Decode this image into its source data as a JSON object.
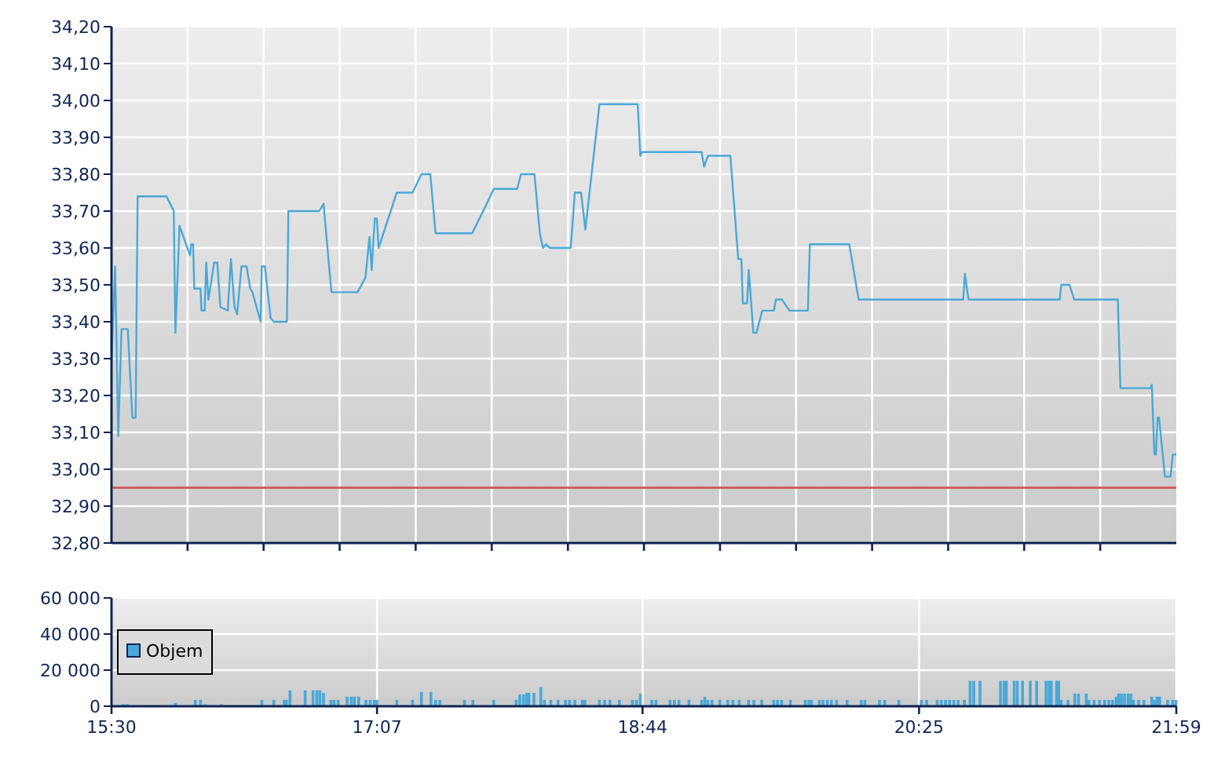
{
  "chart_data": [
    {
      "type": "line",
      "color": "#4aa8d8",
      "grid": true,
      "tick_labels": "y",
      "xlim": [
        15.5,
        21.9833
      ],
      "ylim": [
        32.8,
        34.2
      ],
      "xticks": [
        {
          "value": 15.963,
          "label": null
        },
        {
          "value": 16.426,
          "label": null
        },
        {
          "value": 16.889,
          "label": null
        },
        {
          "value": 17.352,
          "label": null
        },
        {
          "value": 17.815,
          "label": null
        },
        {
          "value": 18.279,
          "label": null
        },
        {
          "value": 18.742,
          "label": null
        },
        {
          "value": 19.205,
          "label": null
        },
        {
          "value": 19.668,
          "label": null
        },
        {
          "value": 20.131,
          "label": null
        },
        {
          "value": 20.594,
          "label": null
        },
        {
          "value": 21.057,
          "label": null
        },
        {
          "value": 21.52,
          "label": null
        }
      ],
      "yticks": [
        {
          "value": 32.8,
          "label": "32,80"
        },
        {
          "value": 32.9,
          "label": "32,90"
        },
        {
          "value": 33.0,
          "label": "33,00"
        },
        {
          "value": 33.1,
          "label": "33,10"
        },
        {
          "value": 33.2,
          "label": "33,20"
        },
        {
          "value": 33.3,
          "label": "33,30"
        },
        {
          "value": 33.4,
          "label": "33,40"
        },
        {
          "value": 33.5,
          "label": "33,50"
        },
        {
          "value": 33.6,
          "label": "33,60"
        },
        {
          "value": 33.7,
          "label": "33,70"
        },
        {
          "value": 33.8,
          "label": "33,80"
        },
        {
          "value": 33.9,
          "label": "33,90"
        },
        {
          "value": 34.0,
          "label": "34,00"
        },
        {
          "value": 34.1,
          "label": "34,10"
        },
        {
          "value": 34.2,
          "label": "34,20"
        }
      ],
      "ref_lines": [
        {
          "axis": "y",
          "value": 32.95,
          "label": null,
          "color": "#d06060"
        }
      ],
      "x": [
        15.5,
        15.522,
        15.541,
        15.561,
        15.599,
        15.627,
        15.647,
        15.659,
        15.835,
        15.879,
        15.889,
        15.914,
        15.978,
        15.985,
        15.997,
        16.004,
        16.042,
        16.048,
        16.067,
        16.077,
        16.09,
        16.125,
        16.144,
        16.163,
        16.208,
        16.227,
        16.249,
        16.265,
        16.291,
        16.322,
        16.345,
        16.358,
        16.408,
        16.415,
        16.434,
        16.469,
        16.488,
        16.568,
        16.577,
        16.765,
        16.791,
        16.839,
        16.998,
        17.046,
        17.071,
        17.084,
        17.103,
        17.116,
        17.126,
        17.237,
        17.333,
        17.387,
        17.441,
        17.473,
        17.696,
        17.785,
        17.827,
        17.97,
        17.993,
        18.075,
        18.108,
        18.127,
        18.146,
        18.168,
        18.296,
        18.321,
        18.359,
        18.385,
        18.471,
        18.704,
        18.72,
        18.729,
        19.093,
        19.108,
        19.131,
        19.268,
        19.316,
        19.335,
        19.344,
        19.37,
        19.38,
        19.408,
        19.427,
        19.462,
        19.533,
        19.545,
        19.583,
        19.628,
        19.74,
        19.752,
        19.992,
        20.049,
        20.686,
        20.696,
        20.718,
        21.273,
        21.283,
        21.333,
        21.362,
        21.627,
        21.643,
        21.828,
        21.834,
        21.85,
        21.859,
        21.869,
        21.878,
        21.914,
        21.948,
        21.962,
        21.983
      ],
      "values": [
        33.29,
        33.55,
        33.09,
        33.38,
        33.38,
        33.14,
        33.14,
        33.74,
        33.74,
        33.7,
        33.37,
        33.66,
        33.58,
        33.61,
        33.61,
        33.49,
        33.49,
        33.43,
        33.43,
        33.56,
        33.46,
        33.56,
        33.56,
        33.44,
        33.43,
        33.57,
        33.44,
        33.42,
        33.55,
        33.55,
        33.49,
        33.48,
        33.4,
        33.55,
        33.55,
        33.41,
        33.4,
        33.4,
        33.7,
        33.7,
        33.72,
        33.48,
        33.48,
        33.52,
        33.63,
        33.54,
        33.68,
        33.68,
        33.6,
        33.75,
        33.75,
        33.8,
        33.8,
        33.64,
        33.64,
        33.72,
        33.76,
        33.76,
        33.8,
        33.8,
        33.64,
        33.6,
        33.61,
        33.6,
        33.6,
        33.75,
        33.75,
        33.65,
        33.99,
        33.99,
        33.85,
        33.86,
        33.86,
        33.82,
        33.85,
        33.85,
        33.57,
        33.57,
        33.45,
        33.45,
        33.54,
        33.37,
        33.37,
        33.43,
        33.43,
        33.46,
        33.46,
        33.43,
        33.43,
        33.61,
        33.61,
        33.46,
        33.46,
        33.53,
        33.46,
        33.46,
        33.5,
        33.5,
        33.46,
        33.46,
        33.22,
        33.22,
        33.23,
        33.04,
        33.04,
        33.14,
        33.14,
        32.98,
        32.98,
        33.04,
        33.04
      ]
    },
    {
      "type": "bar",
      "grid": true,
      "legend": "left",
      "xlim": [
        15.5,
        21.9833
      ],
      "ylim": [
        0,
        60000
      ],
      "xticks": [
        {
          "value": 15.5,
          "label": "15:30"
        },
        {
          "value": 17.1167,
          "label": "17:07"
        },
        {
          "value": 18.7333,
          "label": "18:44"
        },
        {
          "value": 20.4167,
          "label": "20:25"
        },
        {
          "value": 21.9833,
          "label": "21:59"
        }
      ],
      "yticks": [
        {
          "value": 0,
          "label": "0"
        },
        {
          "value": 20000,
          "label": "20 000"
        },
        {
          "value": 40000,
          "label": "40 000"
        },
        {
          "value": 60000,
          "label": "60 000"
        }
      ],
      "x": [
        15.57,
        15.596,
        15.889,
        16.01,
        16.042,
        16.071,
        16.169,
        16.415,
        16.488,
        16.552,
        16.565,
        16.587,
        16.679,
        16.727,
        16.75,
        16.769,
        16.791,
        16.836,
        16.855,
        16.88,
        16.934,
        16.96,
        16.979,
        17.005,
        17.049,
        17.075,
        17.1,
        17.116,
        17.237,
        17.333,
        17.387,
        17.445,
        17.473,
        17.499,
        17.649,
        17.7,
        17.827,
        17.964,
        17.986,
        18.009,
        18.028,
        18.041,
        18.072,
        18.114,
        18.136,
        18.175,
        18.219,
        18.264,
        18.289,
        18.321,
        18.366,
        18.382,
        18.471,
        18.503,
        18.535,
        18.592,
        18.672,
        18.697,
        18.72,
        18.79,
        18.815,
        18.901,
        18.927,
        18.955,
        19.016,
        19.093,
        19.112,
        19.131,
        19.156,
        19.204,
        19.252,
        19.284,
        19.322,
        19.379,
        19.411,
        19.459,
        19.532,
        19.555,
        19.58,
        19.634,
        19.724,
        19.746,
        19.762,
        19.81,
        19.832,
        19.858,
        19.883,
        19.915,
        19.979,
        20.065,
        20.087,
        20.176,
        20.208,
        20.294,
        20.431,
        20.463,
        20.527,
        20.552,
        20.578,
        20.603,
        20.629,
        20.655,
        20.693,
        20.728,
        20.75,
        20.788,
        20.913,
        20.935,
        20.948,
        20.996,
        21.015,
        21.047,
        21.094,
        21.133,
        21.19,
        21.209,
        21.222,
        21.254,
        21.267,
        21.282,
        21.324,
        21.365,
        21.388,
        21.435,
        21.451,
        21.483,
        21.515,
        21.547,
        21.573,
        21.595,
        21.617,
        21.633,
        21.649,
        21.668,
        21.69,
        21.706,
        21.722,
        21.754,
        21.786,
        21.834,
        21.85,
        21.866,
        21.882,
        21.93,
        21.961,
        21.981
      ],
      "series": [
        {
          "name": "Objem",
          "color": "#4aa8d8",
          "values": [
            1200,
            1200,
            1800,
            3500,
            3500,
            1200,
            1200,
            3500,
            3500,
            3500,
            3500,
            8800,
            8800,
            8800,
            8800,
            8800,
            7400,
            3500,
            3500,
            3500,
            5300,
            5300,
            5300,
            5300,
            3500,
            3500,
            3500,
            3500,
            3500,
            3500,
            7900,
            7900,
            3500,
            3500,
            3500,
            3500,
            3500,
            3500,
            6500,
            6500,
            7400,
            7400,
            7400,
            10600,
            3500,
            3500,
            3500,
            3500,
            3500,
            3500,
            3500,
            3500,
            3500,
            3500,
            3500,
            3500,
            3500,
            3500,
            7000,
            3500,
            3500,
            3500,
            3500,
            3500,
            3500,
            3500,
            5300,
            3500,
            3500,
            3500,
            3500,
            3500,
            3500,
            3500,
            3500,
            3500,
            3500,
            3500,
            3500,
            3500,
            3500,
            3500,
            3500,
            3500,
            3500,
            3500,
            3500,
            3500,
            3500,
            3500,
            3500,
            3500,
            3500,
            3500,
            3500,
            3500,
            3500,
            3500,
            3500,
            3500,
            3500,
            3500,
            3500,
            14100,
            14100,
            14100,
            14100,
            14100,
            14100,
            14100,
            14100,
            14100,
            14100,
            14100,
            14100,
            14100,
            14100,
            14100,
            14100,
            3500,
            3500,
            7000,
            7000,
            7000,
            3500,
            3500,
            3500,
            3500,
            3500,
            3500,
            5300,
            7000,
            7000,
            7000,
            7000,
            7000,
            3500,
            3500,
            3500,
            5300,
            3500,
            5300,
            5300,
            3500,
            3500,
            3500
          ]
        }
      ]
    }
  ]
}
